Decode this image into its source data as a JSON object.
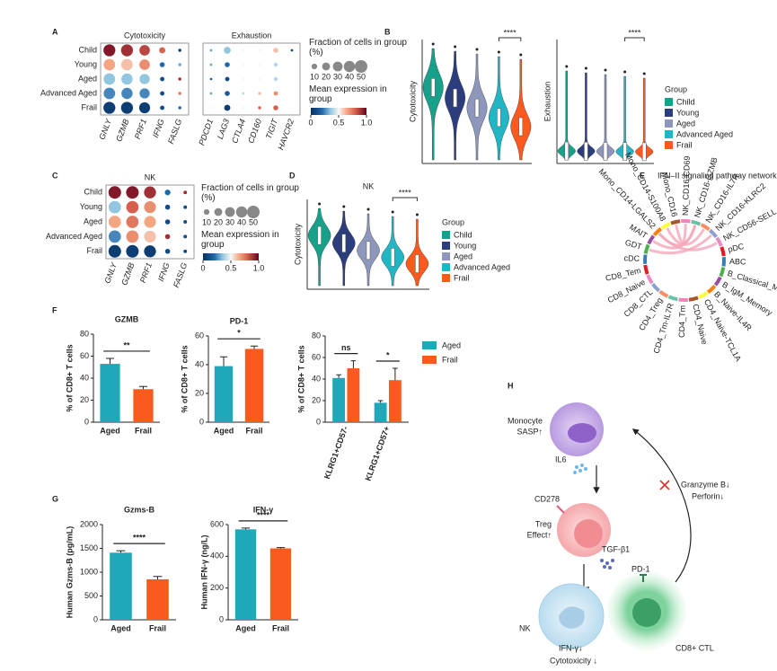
{
  "panel_labels": [
    "A",
    "B",
    "C",
    "D",
    "E",
    "F",
    "G",
    "H"
  ],
  "chart_data": [
    {
      "type": "dotplot",
      "title": "Cytotoxicity",
      "rows": [
        "Child",
        "Young",
        "Aged",
        "Advanced Aged",
        "Frail"
      ],
      "genes": [
        "GNLY",
        "GZMB",
        "PRF1",
        "IFNG",
        "FASLG"
      ],
      "fraction": [
        [
          45,
          45,
          35,
          12,
          3
        ],
        [
          42,
          42,
          35,
          8,
          3
        ],
        [
          42,
          40,
          33,
          6,
          3
        ],
        [
          42,
          40,
          33,
          6,
          3
        ],
        [
          45,
          45,
          38,
          6,
          3
        ]
      ],
      "mean": [
        [
          0.95,
          0.9,
          0.85,
          0.8,
          0.05
        ],
        [
          0.65,
          0.6,
          0.7,
          0.2,
          0.3
        ],
        [
          0.35,
          0.35,
          0.35,
          0.1,
          0.9
        ],
        [
          0.25,
          0.25,
          0.25,
          0.1,
          0.75
        ],
        [
          0.05,
          0.05,
          0.05,
          0.1,
          0.2
        ]
      ],
      "size_legend_title": "Fraction of cells in group (%)",
      "size_ticks": [
        10,
        20,
        30,
        40,
        50
      ],
      "color_legend_title": "Mean expression in group",
      "clim": [
        0,
        1
      ],
      "color_ticks": [
        0,
        0.5,
        {
          "value": 1,
          "label": "1.0"
        }
      ]
    },
    {
      "type": "dotplot",
      "title": "Exhaustion",
      "genes": [
        "PDCD1",
        "LAG3",
        "CTLA4",
        "CD160",
        "TIGIT",
        "HAVCR2"
      ],
      "fraction": [
        [
          2,
          15,
          3,
          3,
          8,
          2
        ],
        [
          2,
          8,
          2,
          3,
          5,
          1
        ],
        [
          2,
          6,
          2,
          3,
          5,
          1
        ],
        [
          2,
          8,
          2,
          3,
          6,
          1
        ],
        [
          2,
          12,
          2,
          3,
          8,
          1
        ]
      ],
      "mean": [
        [
          0.3,
          0.35,
          0.5,
          0.5,
          0.6,
          0.1
        ],
        [
          0.3,
          0.2,
          0.5,
          0.5,
          0.4,
          0.5
        ],
        [
          0.2,
          0.1,
          0.5,
          0.5,
          0.4,
          0.5
        ],
        [
          0.3,
          0.15,
          0.4,
          0.6,
          0.7,
          0.5
        ],
        [
          0.5,
          0.05,
          0.5,
          0.8,
          0.8,
          0.5
        ]
      ]
    },
    {
      "type": "dotplot",
      "title": "NK",
      "rows": [
        "Child",
        "Young",
        "Aged",
        "Advanced Aged",
        "Frail"
      ],
      "genes": [
        "GNLY",
        "GZMB",
        "PRF1",
        "IFNG",
        "FASLG"
      ],
      "fraction": [
        [
          50,
          50,
          45,
          10,
          4
        ],
        [
          48,
          48,
          44,
          8,
          4
        ],
        [
          48,
          48,
          44,
          8,
          4
        ],
        [
          48,
          48,
          44,
          8,
          4
        ],
        [
          50,
          50,
          45,
          8,
          4
        ]
      ],
      "mean": [
        [
          0.95,
          0.95,
          0.9,
          0.2,
          0.9
        ],
        [
          0.35,
          0.8,
          0.7,
          0.1,
          0.1
        ],
        [
          0.65,
          0.75,
          0.65,
          0.1,
          0.1
        ],
        [
          0.25,
          0.7,
          0.6,
          0.9,
          0.1
        ],
        [
          0.05,
          0.05,
          0.05,
          0.1,
          0.1
        ]
      ],
      "size_legend_title": "Fraction of cells in group (%)",
      "size_ticks": [
        10,
        20,
        30,
        40,
        50
      ],
      "color_legend_title": "Mean expression in group",
      "clim": [
        0,
        1
      ],
      "color_ticks": [
        0,
        0.5,
        {
          "value": 1,
          "label": "1.0"
        }
      ]
    },
    {
      "type": "violin",
      "ylabel": "Cytotoxicity",
      "significance": "****",
      "colors": [
        "#17a08a",
        "#2b3d7c",
        "#8d97bb",
        "#22b5c3",
        "#fb5a1e"
      ]
    },
    {
      "type": "violin",
      "ylabel": "Exhaustion",
      "significance": "****",
      "colors": [
        "#17a08a",
        "#2b3d7c",
        "#8d97bb",
        "#22b5c3",
        "#fb5a1e"
      ],
      "legend_title": "Group",
      "categories": [
        "Child",
        "Young",
        "Aged",
        "Advanced Aged",
        "Frail"
      ]
    },
    {
      "type": "violin",
      "title": "NK",
      "ylabel": "Cytotoxicity",
      "significance": "****",
      "colors": [
        "#17a08a",
        "#2b3d7c",
        "#8d97bb",
        "#22b5c3",
        "#fb5a1e"
      ],
      "legend_title": "Group",
      "categories": [
        "Child",
        "Young",
        "Aged",
        "Advanced Aged",
        "Frail"
      ]
    },
    {
      "type": "chord",
      "title": "IFN–II signaling pathway network (Advanced Aged)",
      "labels": [
        "pDC",
        "ABC",
        "B_Classical_Memory",
        "B_IgM_Memory",
        "B_Naive-IL4R",
        "CD4_Naive-TCL1A",
        "CD4_Naive",
        "CD4_Tm",
        "CD4_Tm-IL7R",
        "CD4_Treg",
        "CD8_CTL",
        "CD8_Naive",
        "CD8_Tem",
        "cDC",
        "GDT",
        "MAIT",
        "Mono_CD14-LGALS2",
        "Mono_CD14-S100A8",
        "Mono_CD16",
        "NK_CD16-CD69",
        "NK_CD16-GZMB",
        "NK_CD16-IL7R",
        "NK_CD16-KLRC2",
        "NK_CD56-SELL"
      ]
    },
    {
      "type": "bar",
      "title": "GZMB",
      "ylabel": "% of CD8+ T cells",
      "categories": [
        "Aged",
        "Frail"
      ],
      "values": [
        53,
        30
      ],
      "errors": [
        5,
        2.5
      ],
      "colors": [
        "#1fa8b8",
        "#fb5a1e"
      ],
      "ylim": [
        0,
        80
      ],
      "yticks": [
        0,
        20,
        40,
        60,
        80
      ],
      "annotations": [
        "**"
      ]
    },
    {
      "type": "bar",
      "title": "PD-1",
      "ylabel": "% of CD8+ T cells",
      "categories": [
        "Aged",
        "Frail"
      ],
      "values": [
        39,
        51
      ],
      "errors": [
        6.5,
        2
      ],
      "colors": [
        "#1fa8b8",
        "#fb5a1e"
      ],
      "ylim": [
        0,
        60
      ],
      "yticks": [
        0,
        20,
        40,
        60
      ],
      "annotations": [
        "*"
      ]
    },
    {
      "type": "bar",
      "ylabel": "% of CD8+ T cells",
      "categories": [
        "KLRG1+CD57-",
        "KLRG1+CD57+"
      ],
      "series": [
        {
          "name": "Aged",
          "color": "#1fa8b8",
          "values": [
            41,
            18
          ],
          "errors": [
            3,
            2
          ]
        },
        {
          "name": "Frail",
          "color": "#fb5a1e",
          "values": [
            50,
            39
          ],
          "errors": [
            7,
            11
          ]
        }
      ],
      "ylim": [
        0,
        80
      ],
      "yticks": [
        0,
        20,
        40,
        60,
        80
      ],
      "annotations": [
        "ns",
        "*"
      ]
    },
    {
      "type": "bar",
      "title": "Gzms-B",
      "ylabel": "Human Gzms-B (pg/mL)",
      "categories": [
        "Aged",
        "Frail"
      ],
      "values": [
        1410,
        850
      ],
      "errors": [
        40,
        60
      ],
      "colors": [
        "#1fa8b8",
        "#fb5a1e"
      ],
      "ylim": [
        0,
        2000
      ],
      "yticks": [
        0,
        500,
        1000,
        1500,
        2000
      ],
      "annotations": [
        "****"
      ]
    },
    {
      "type": "bar",
      "title": "IFN-γ",
      "ylabel": "Human IFN-γ (ng/L)",
      "categories": [
        "Aged",
        "Frail"
      ],
      "values": [
        570,
        450
      ],
      "errors": [
        8,
        5
      ],
      "colors": [
        "#1fa8b8",
        "#fb5a1e"
      ],
      "ylim": [
        0,
        600
      ],
      "yticks": [
        0,
        200,
        400,
        600
      ],
      "annotations": [
        "****"
      ]
    }
  ],
  "schematic": {
    "monocyte": "Monocyte",
    "sasp": "SASP↑",
    "il6": "IL6",
    "cd278": "CD278",
    "treg": "Treg",
    "treg_effect": "Effect↑",
    "tgf": "TGF-β1",
    "pd1": "PD-1",
    "nk": "NK",
    "ctl": "CD8+ CTL",
    "ifng": "IFN-γ↓",
    "cytotoxicity": "Cytotoxicity ↓",
    "granzyme": "Granzyme B↓",
    "perforin": "Perforin↓"
  }
}
